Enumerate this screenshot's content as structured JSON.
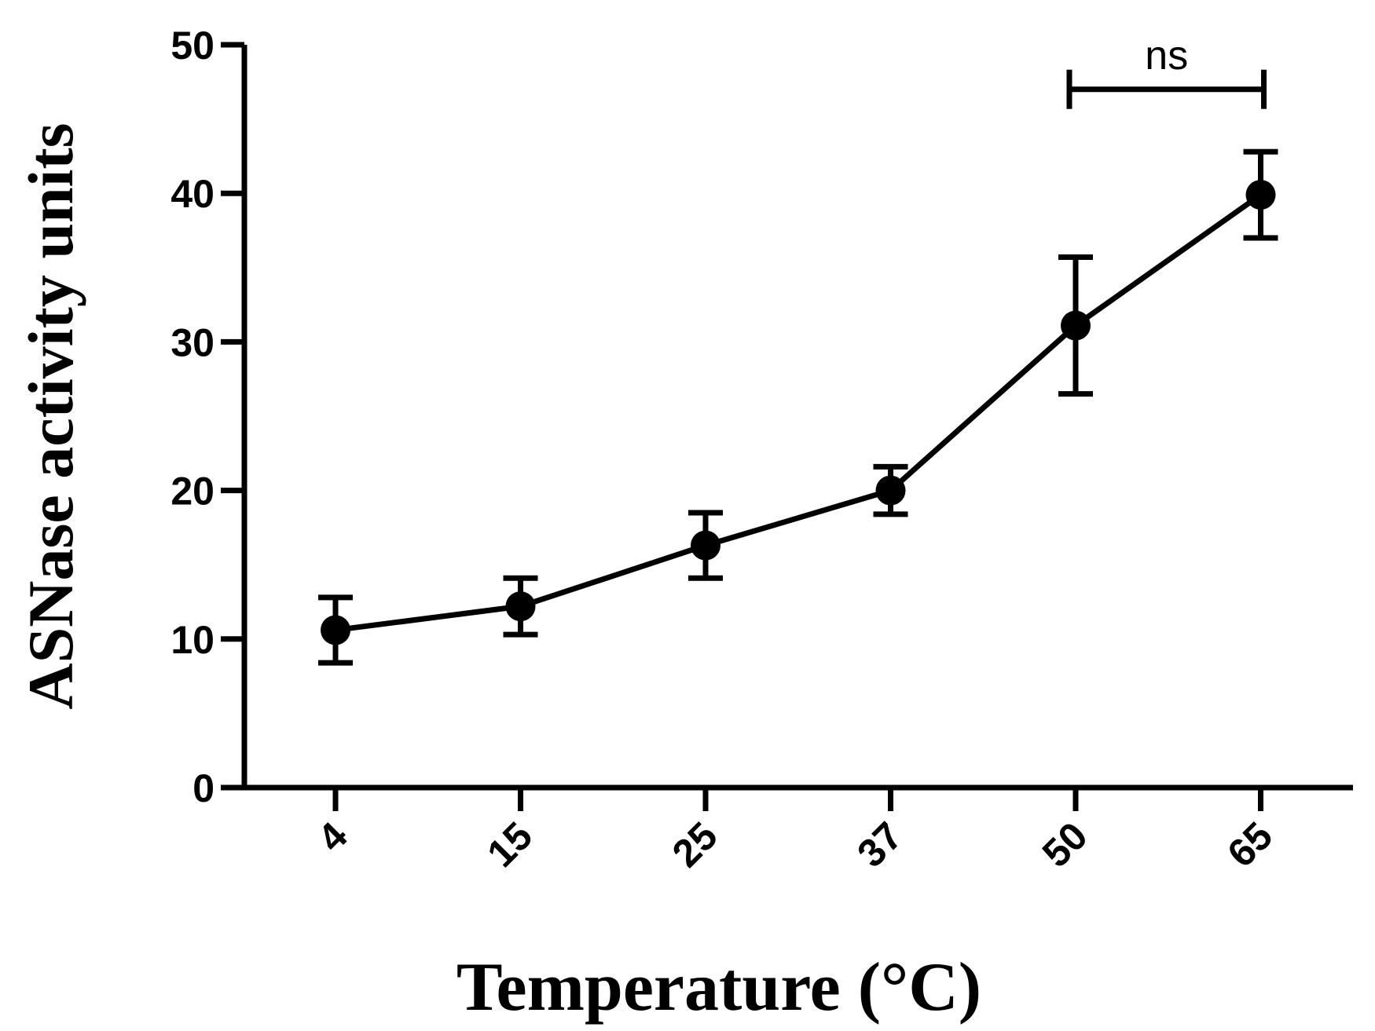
{
  "chart_data": {
    "type": "line",
    "title": "",
    "xlabel": "Temperature (°C)",
    "ylabel": "ASNase activity units",
    "ylim": [
      0,
      50
    ],
    "yticks": [
      "0",
      "10",
      "20",
      "30",
      "40",
      "50"
    ],
    "categories": [
      "4",
      "15",
      "25",
      "37",
      "50",
      "65"
    ],
    "series": [
      {
        "name": "ASNase activity",
        "values": [
          10.6,
          12.2,
          16.3,
          20.0,
          31.1,
          39.9
        ],
        "error": [
          2.2,
          1.9,
          2.2,
          1.6,
          4.6,
          2.9
        ]
      }
    ],
    "annotations": [
      {
        "text": "ns",
        "from_category": "50",
        "to_category": "65",
        "bracket_value": 47.0
      }
    ]
  }
}
